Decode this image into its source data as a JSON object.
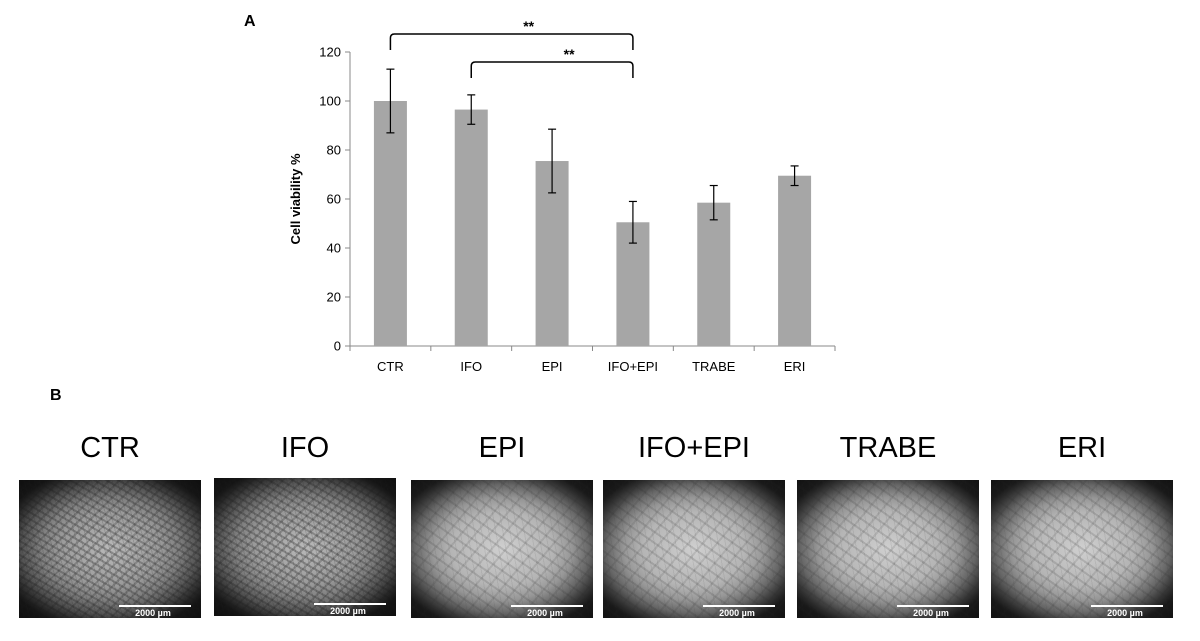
{
  "panel_a_label": "A",
  "panel_b_label": "B",
  "chart_data": {
    "type": "bar",
    "categories": [
      "CTR",
      "IFO",
      "EPI",
      "IFO+EPI",
      "TRABE",
      "ERI"
    ],
    "values": [
      100,
      96.5,
      75.5,
      50.5,
      58.5,
      69.5
    ],
    "error": [
      13,
      6,
      13,
      8.5,
      7,
      4
    ],
    "ylabel": "Cell viability %",
    "xlabel": "",
    "ylim": [
      0,
      120
    ],
    "yticks": [
      0,
      20,
      40,
      60,
      80,
      100,
      120
    ],
    "grid": false,
    "bar_color": "#a6a6a6",
    "significance": [
      {
        "from": 0,
        "to": 3,
        "label": "**"
      },
      {
        "from": 1,
        "to": 3,
        "label": "**"
      }
    ]
  },
  "micrographs": [
    {
      "title": "CTR",
      "scale": "2000 µm",
      "style": "dense"
    },
    {
      "title": "IFO",
      "scale": "2000 µm",
      "style": "dense"
    },
    {
      "title": "EPI",
      "scale": "2000 µm",
      "style": "light"
    },
    {
      "title": "IFO+EPI",
      "scale": "2000 µm",
      "style": "light"
    },
    {
      "title": "TRABE",
      "scale": "2000 µm",
      "style": "light"
    },
    {
      "title": "ERI",
      "scale": "2000 µm",
      "style": "light"
    }
  ]
}
